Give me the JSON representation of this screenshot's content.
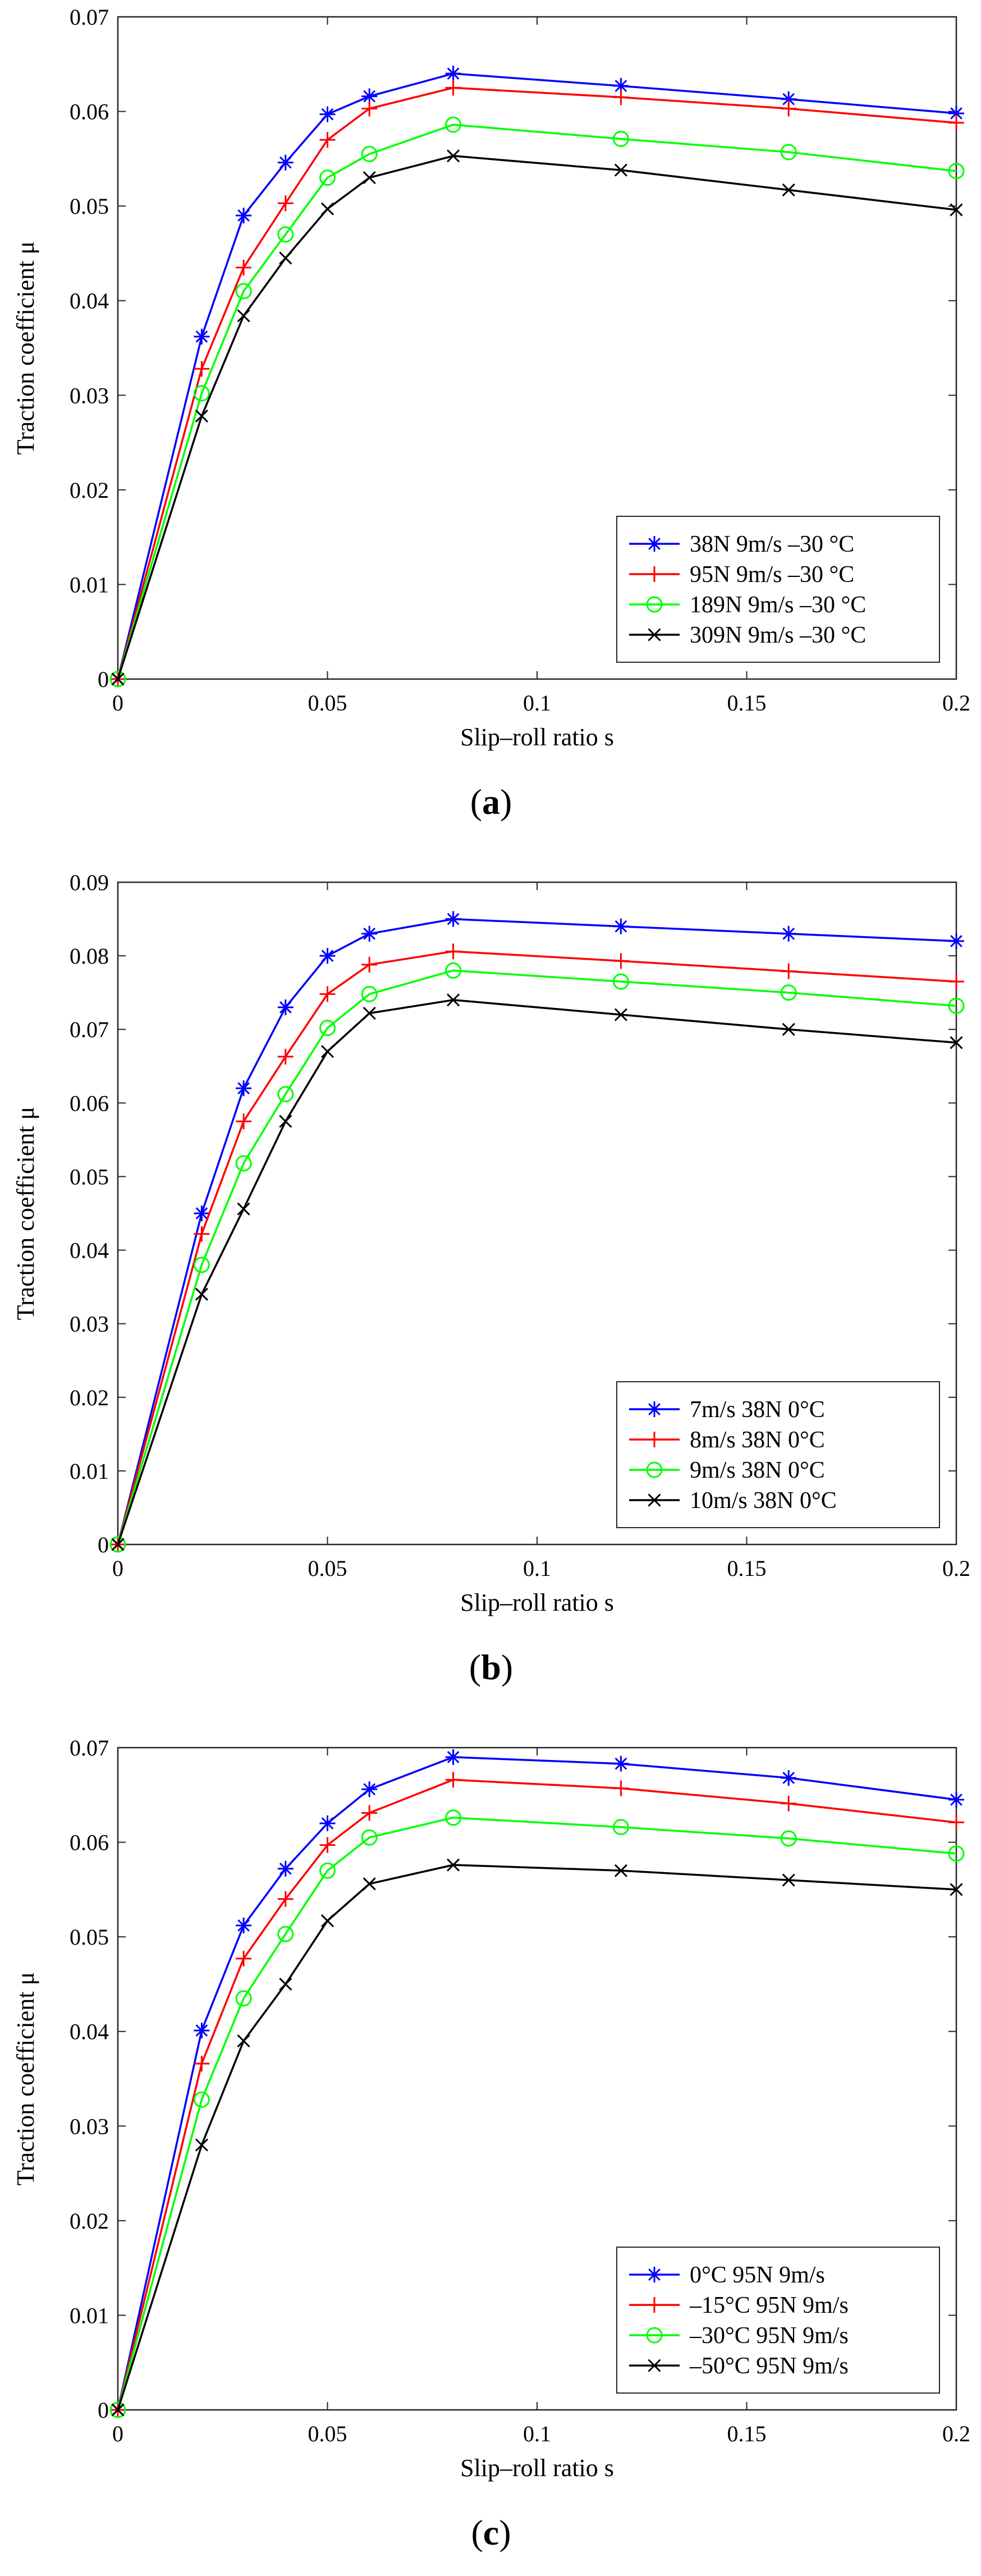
{
  "chart_data": [
    {
      "type": "line",
      "panel_label": "a",
      "xlabel": "Slip–roll ratio   s",
      "ylabel": "Traction coefficient   μ",
      "xlim": [
        0,
        0.2
      ],
      "ylim": [
        0,
        0.07
      ],
      "xticks": [
        0,
        0.05,
        0.1,
        0.15,
        0.2
      ],
      "xtick_labels": [
        "0",
        "0.05",
        "0.1",
        "0.15",
        "0.2"
      ],
      "yticks": [
        0,
        0.01,
        0.02,
        0.03,
        0.04,
        0.05,
        0.06,
        0.07
      ],
      "ytick_labels": [
        "0",
        "0.01",
        "0.02",
        "0.03",
        "0.04",
        "0.05",
        "0.06",
        "0.07"
      ],
      "legend_position": "bottom-right",
      "x": [
        0,
        0.02,
        0.03,
        0.04,
        0.05,
        0.06,
        0.08,
        0.12,
        0.16,
        0.2
      ],
      "series": [
        {
          "name": "38N 9m/s –30 °C",
          "color": "#0000ff",
          "marker": "star",
          "values": [
            0,
            0.0362,
            0.049,
            0.0546,
            0.0597,
            0.0616,
            0.064,
            0.0627,
            0.0613,
            0.0598
          ]
        },
        {
          "name": "95N 9m/s –30 °C",
          "color": "#ff0000",
          "marker": "plus",
          "values": [
            0,
            0.0328,
            0.0435,
            0.0503,
            0.057,
            0.0603,
            0.0625,
            0.0615,
            0.0603,
            0.0588
          ]
        },
        {
          "name": "189N 9m/s –30 °C",
          "color": "#00ff00",
          "marker": "circle",
          "values": [
            0,
            0.0302,
            0.041,
            0.047,
            0.053,
            0.0555,
            0.0586,
            0.0571,
            0.0557,
            0.0537
          ]
        },
        {
          "name": "309N 9m/s –30 °C",
          "color": "#000000",
          "marker": "x",
          "values": [
            0,
            0.0278,
            0.0384,
            0.0445,
            0.0497,
            0.053,
            0.0553,
            0.0538,
            0.0517,
            0.0496
          ]
        }
      ]
    },
    {
      "type": "line",
      "panel_label": "b",
      "xlabel": "Slip–roll ratio   s",
      "ylabel": "Traction coefficient   μ",
      "xlim": [
        0,
        0.2
      ],
      "ylim": [
        0,
        0.09
      ],
      "xticks": [
        0,
        0.05,
        0.1,
        0.15,
        0.2
      ],
      "xtick_labels": [
        "0",
        "0.05",
        "0.1",
        "0.15",
        "0.2"
      ],
      "yticks": [
        0,
        0.01,
        0.02,
        0.03,
        0.04,
        0.05,
        0.06,
        0.07,
        0.08,
        0.09
      ],
      "ytick_labels": [
        "0",
        "0.01",
        "0.02",
        "0.03",
        "0.04",
        "0.05",
        "0.06",
        "0.07",
        "0.08",
        "0.09"
      ],
      "legend_position": "bottom-right",
      "x": [
        0,
        0.02,
        0.03,
        0.04,
        0.05,
        0.06,
        0.08,
        0.12,
        0.16,
        0.2
      ],
      "series": [
        {
          "name": "7m/s 38N 0°C",
          "color": "#0000ff",
          "marker": "star",
          "values": [
            0,
            0.045,
            0.062,
            0.073,
            0.08,
            0.083,
            0.085,
            0.084,
            0.083,
            0.082
          ]
        },
        {
          "name": "8m/s 38N 0°C",
          "color": "#ff0000",
          "marker": "plus",
          "values": [
            0,
            0.0422,
            0.0575,
            0.0663,
            0.0748,
            0.0788,
            0.0806,
            0.0793,
            0.0779,
            0.0765
          ]
        },
        {
          "name": "9m/s 38N 0°C",
          "color": "#00ff00",
          "marker": "circle",
          "values": [
            0,
            0.038,
            0.0518,
            0.0612,
            0.0702,
            0.0748,
            0.078,
            0.0765,
            0.075,
            0.0732
          ]
        },
        {
          "name": "10m/s 38N 0°C",
          "color": "#000000",
          "marker": "x",
          "values": [
            0,
            0.034,
            0.0456,
            0.0575,
            0.067,
            0.0722,
            0.074,
            0.072,
            0.07,
            0.0682
          ]
        }
      ]
    },
    {
      "type": "line",
      "panel_label": "c",
      "xlabel": "Slip–roll ratio   s",
      "ylabel": "Traction coefficient   μ",
      "xlim": [
        0,
        0.2
      ],
      "ylim": [
        0,
        0.07
      ],
      "xticks": [
        0,
        0.05,
        0.1,
        0.15,
        0.2
      ],
      "xtick_labels": [
        "0",
        "0.05",
        "0.1",
        "0.15",
        "0.2"
      ],
      "yticks": [
        0,
        0.01,
        0.02,
        0.03,
        0.04,
        0.05,
        0.06,
        0.07
      ],
      "ytick_labels": [
        "0",
        "0.01",
        "0.02",
        "0.03",
        "0.04",
        "0.05",
        "0.06",
        "0.07"
      ],
      "legend_position": "bottom-right",
      "x": [
        0,
        0.02,
        0.03,
        0.04,
        0.05,
        0.06,
        0.08,
        0.12,
        0.16,
        0.2
      ],
      "series": [
        {
          "name": "0°C 95N 9m/s",
          "color": "#0000ff",
          "marker": "star",
          "values": [
            0,
            0.0401,
            0.0512,
            0.0572,
            0.062,
            0.0656,
            0.069,
            0.0683,
            0.0668,
            0.0645
          ]
        },
        {
          "name": "–15°C 95N 9m/s",
          "color": "#ff0000",
          "marker": "plus",
          "values": [
            0,
            0.0366,
            0.0477,
            0.054,
            0.0597,
            0.0631,
            0.0666,
            0.0657,
            0.0641,
            0.0621
          ]
        },
        {
          "name": "–30°C 95N 9m/s",
          "color": "#00ff00",
          "marker": "circle",
          "values": [
            0,
            0.0328,
            0.0435,
            0.0503,
            0.057,
            0.0605,
            0.0626,
            0.0616,
            0.0604,
            0.0588
          ]
        },
        {
          "name": "–50°C 95N 9m/s",
          "color": "#000000",
          "marker": "x",
          "values": [
            0,
            0.028,
            0.039,
            0.045,
            0.0517,
            0.0556,
            0.0576,
            0.057,
            0.056,
            0.055
          ]
        }
      ]
    }
  ]
}
